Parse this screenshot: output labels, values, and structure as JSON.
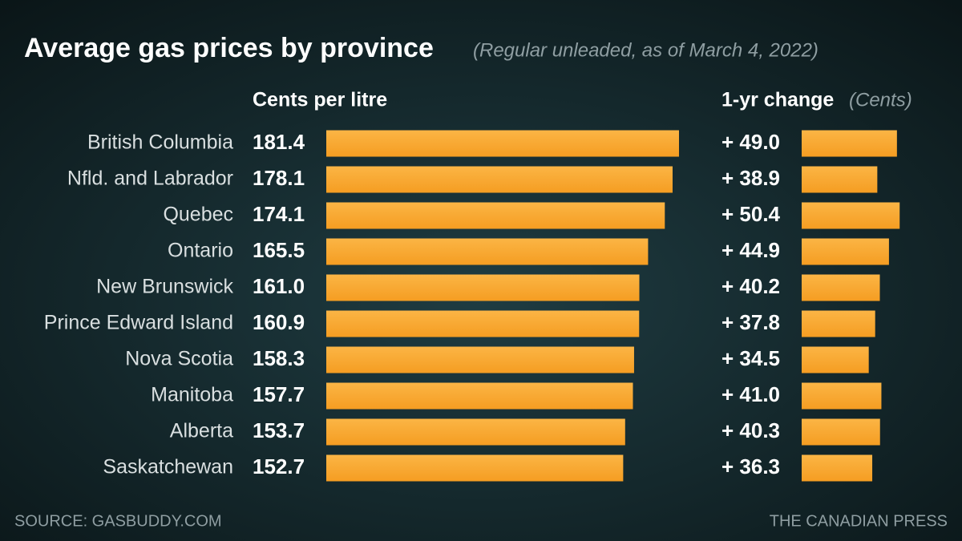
{
  "chart_data": {
    "type": "bar",
    "title": "Average gas prices by province",
    "subtitle": "(Regular unleaded, as of March 4, 2022)",
    "categories": [
      "British Columbia",
      "Nfld. and Labrador",
      "Quebec",
      "Ontario",
      "New Brunswick",
      "Prince Edward Island",
      "Nova Scotia",
      "Manitoba",
      "Alberta",
      "Saskatchewan"
    ],
    "series": [
      {
        "name": "Cents per litre",
        "color": "#f9a832",
        "values": [
          181.4,
          178.1,
          174.1,
          165.5,
          161.0,
          160.9,
          158.3,
          157.7,
          153.7,
          152.7
        ],
        "value_labels": [
          "181.4",
          "178.1",
          "174.1",
          "165.5",
          "161.0",
          "160.9",
          "158.3",
          "157.7",
          "153.7",
          "152.7"
        ]
      },
      {
        "name": "1-yr change",
        "unit": "(Cents)",
        "color": "#f9a832",
        "values": [
          49.0,
          38.9,
          50.4,
          44.9,
          40.2,
          37.8,
          34.5,
          41.0,
          40.3,
          36.3
        ],
        "value_labels": [
          "+ 49.0",
          "+ 38.9",
          "+ 50.4",
          "+ 44.9",
          "+ 40.2",
          "+ 37.8",
          "+ 34.5",
          "+ 41.0",
          "+ 40.3",
          "+ 36.3"
        ]
      }
    ],
    "source": "SOURCE: GASBUDDY.COM",
    "credit": "THE CANADIAN PRESS"
  }
}
